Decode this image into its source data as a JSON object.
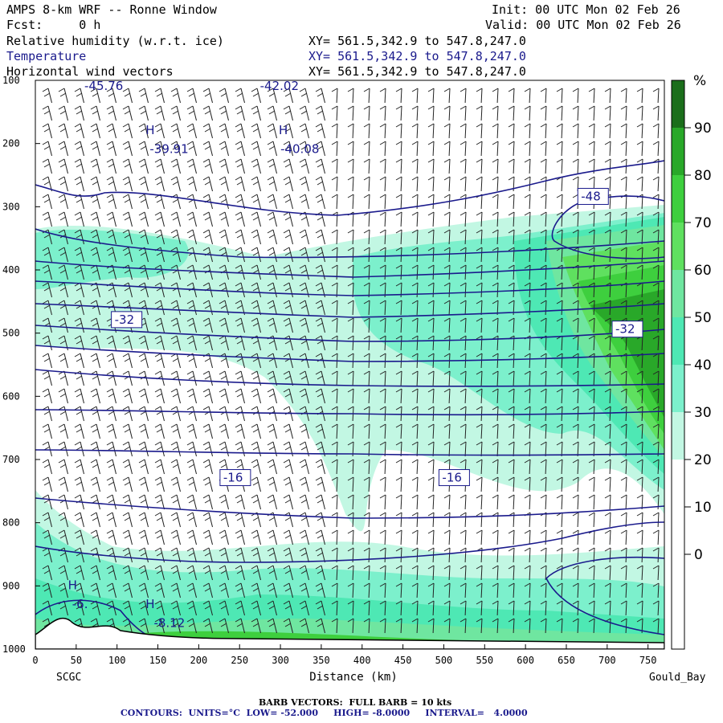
{
  "header": {
    "left_line1": "AMPS 8-km WRF -- Ronne Window",
    "left_line2": "Fcst:     0 h",
    "init": "Init: 00 UTC Mon 02 Feb 26",
    "valid": "Valid: 00 UTC Mon 02 Feb 26",
    "field1": "Relative humidity (w.r.t. ice)",
    "field2": "Temperature",
    "field3": "Horizontal wind vectors",
    "xy": "XY= 561.5,342.9 to 547.8,247.0"
  },
  "footer": {
    "barb": "BARB VECTORS:  FULL BARB = 10 kts",
    "contours": "CONTOURS:  UNITS=°C  LOW= -52.000     HIGH= -8.0000     INTERVAL=   4.0000"
  },
  "colorbar": {
    "unit": "%",
    "labels": [
      "90",
      "80",
      "70",
      "60",
      "50",
      "40",
      "30",
      "20",
      "10",
      "0"
    ],
    "colors": [
      "#1b6e1b",
      "#29a829",
      "#3ecf3e",
      "#5fe05f",
      "#6fe6a0",
      "#4ee8b4",
      "#7cf0cc",
      "#c2f7e3",
      "#ffffff",
      "#ffffff",
      "#ffffff",
      "#ffffff"
    ]
  },
  "chart_data": {
    "type": "cross-section",
    "xlabel": "Distance (km)",
    "ylabel": "",
    "x_ticks": [
      0,
      50,
      100,
      150,
      200,
      250,
      300,
      350,
      400,
      450,
      500,
      550,
      600,
      650,
      700,
      750
    ],
    "y_ticks": [
      100,
      200,
      300,
      400,
      500,
      600,
      700,
      800,
      900,
      1000
    ],
    "xlim": [
      0,
      770
    ],
    "ylim": [
      100,
      1000
    ],
    "left_endpoint": "SCGC",
    "right_endpoint": "Gould_Bay",
    "contour_labels": [
      {
        "text": "-45.76",
        "x": 60,
        "p": 115
      },
      {
        "text": "-42.02",
        "x": 275,
        "p": 115
      },
      {
        "text": "H",
        "x": 135,
        "p": 185
      },
      {
        "text": "-39.91",
        "x": 140,
        "p": 215
      },
      {
        "text": "H",
        "x": 298,
        "p": 185
      },
      {
        "text": "-40.08",
        "x": 300,
        "p": 215
      },
      {
        "text": "-48",
        "x": 668,
        "p": 290
      },
      {
        "text": "-32",
        "x": 97,
        "p": 485
      },
      {
        "text": "-32",
        "x": 710,
        "p": 500
      },
      {
        "text": "-16",
        "x": 230,
        "p": 735
      },
      {
        "text": "-16",
        "x": 498,
        "p": 735
      },
      {
        "text": "H",
        "x": 40,
        "p": 905
      },
      {
        "text": "-6.",
        "x": 45,
        "p": 935
      },
      {
        "text": "H",
        "x": 135,
        "p": 935
      },
      {
        "text": "-8.12",
        "x": 145,
        "p": 965
      }
    ],
    "isotherm_levels": [
      -48,
      -44,
      -40,
      -36,
      -32,
      -28,
      -24,
      -20,
      -16,
      -12,
      -8
    ]
  }
}
